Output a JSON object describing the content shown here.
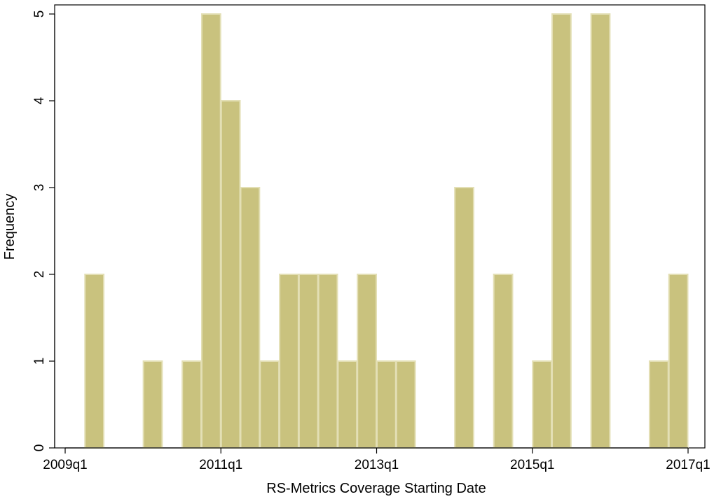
{
  "chart_data": {
    "type": "bar",
    "subtype": "histogram",
    "title": "",
    "xlabel": "RS-Metrics Coverage Starting Date",
    "ylabel": "Frequency",
    "xlim": [
      2009.0,
      2017.0
    ],
    "ylim": [
      0,
      5
    ],
    "x_ticks": [
      {
        "value": 2009.0,
        "label": "2009q1"
      },
      {
        "value": 2011.0,
        "label": "2011q1"
      },
      {
        "value": 2013.0,
        "label": "2013q1"
      },
      {
        "value": 2015.0,
        "label": "2015q1"
      },
      {
        "value": 2017.0,
        "label": "2017q1"
      }
    ],
    "y_ticks": [
      0,
      1,
      2,
      3,
      4,
      5
    ],
    "bin_width_years": 0.25,
    "bins": [
      {
        "start": 2009.25,
        "end": 2009.5,
        "count": 2
      },
      {
        "start": 2010.0,
        "end": 2010.25,
        "count": 1
      },
      {
        "start": 2010.5,
        "end": 2010.75,
        "count": 1
      },
      {
        "start": 2010.75,
        "end": 2011.0,
        "count": 5
      },
      {
        "start": 2011.0,
        "end": 2011.25,
        "count": 4
      },
      {
        "start": 2011.25,
        "end": 2011.5,
        "count": 3
      },
      {
        "start": 2011.5,
        "end": 2011.75,
        "count": 1
      },
      {
        "start": 2011.75,
        "end": 2012.0,
        "count": 2
      },
      {
        "start": 2012.0,
        "end": 2012.25,
        "count": 2
      },
      {
        "start": 2012.25,
        "end": 2012.5,
        "count": 2
      },
      {
        "start": 2012.5,
        "end": 2012.75,
        "count": 1
      },
      {
        "start": 2012.75,
        "end": 2013.0,
        "count": 2
      },
      {
        "start": 2013.0,
        "end": 2013.25,
        "count": 1
      },
      {
        "start": 2013.25,
        "end": 2013.5,
        "count": 1
      },
      {
        "start": 2014.0,
        "end": 2014.25,
        "count": 3
      },
      {
        "start": 2014.5,
        "end": 2014.75,
        "count": 2
      },
      {
        "start": 2015.0,
        "end": 2015.25,
        "count": 1
      },
      {
        "start": 2015.25,
        "end": 2015.5,
        "count": 5
      },
      {
        "start": 2015.75,
        "end": 2016.0,
        "count": 5
      },
      {
        "start": 2016.5,
        "end": 2016.75,
        "count": 1
      },
      {
        "start": 2016.75,
        "end": 2017.0,
        "count": 2
      }
    ],
    "grid": false,
    "legend": "none",
    "colors": {
      "bar_fill": "#c9c27e",
      "bar_edge": "#e3dfb5",
      "axis": "#000000",
      "frame": "#000000"
    }
  }
}
